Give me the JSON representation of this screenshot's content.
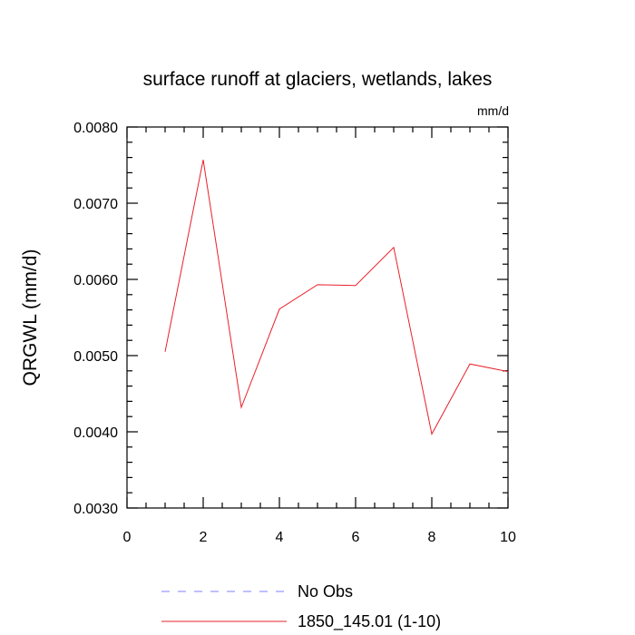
{
  "chart_data": {
    "type": "line",
    "title": "surface runoff at glaciers, wetlands, lakes",
    "units": "mm/d",
    "ylabel": "QRGWL  (mm/d)",
    "xlabel": "",
    "xlim": [
      0,
      10
    ],
    "ylim": [
      0.003,
      0.008
    ],
    "x_ticks": [
      0,
      2,
      4,
      6,
      8,
      10
    ],
    "x_tick_labels": [
      "0",
      "2",
      "4",
      "6",
      "8",
      "10"
    ],
    "y_ticks": [
      0.003,
      0.004,
      0.005,
      0.006,
      0.007,
      0.008
    ],
    "y_tick_labels": [
      "0.0030",
      "0.0040",
      "0.0050",
      "0.0060",
      "0.0070",
      "0.0080"
    ],
    "grid": false,
    "legend_position": "bottom",
    "series": [
      {
        "name": "1850_145.01 (1-10)",
        "color": "#e8202a",
        "style": "solid",
        "x": [
          1,
          2,
          3,
          4,
          5,
          6,
          7,
          8,
          9,
          10
        ],
        "y": [
          0.00505,
          0.00757,
          0.00432,
          0.00561,
          0.00593,
          0.00592,
          0.00642,
          0.00397,
          0.00489,
          0.00479
        ]
      }
    ],
    "legend": [
      {
        "label": "No Obs",
        "color": "#7f7fff",
        "style": "dashed"
      },
      {
        "label": "1850_145.01 (1-10)",
        "color": "#e8202a",
        "style": "solid"
      }
    ]
  }
}
